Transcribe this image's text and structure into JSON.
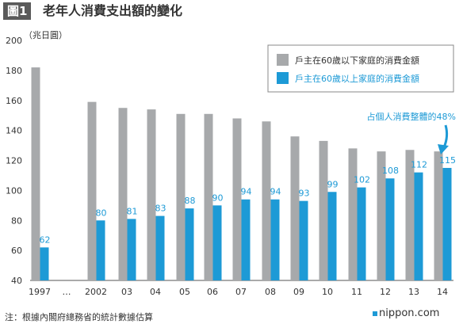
{
  "header": {
    "figure_label": "圖1",
    "title": "老年人消費支出額的變化"
  },
  "unit_label": "（兆日圓）",
  "note": "注：根據內閣府總務省的統計數據估算",
  "brand": "nippon.com",
  "annotation": "占個人消費整體的48%",
  "colors": {
    "gray_series": "#a7a9ab",
    "blue_series": "#1d9ad6",
    "text": "#333333",
    "axis": "#555555"
  },
  "chart_data": {
    "type": "bar",
    "categories": [
      "1997",
      "…",
      "2002",
      "03",
      "04",
      "05",
      "06",
      "07",
      "08",
      "09",
      "10",
      "11",
      "12",
      "13",
      "14"
    ],
    "ylim": [
      40,
      200
    ],
    "yticks": [
      40,
      60,
      80,
      100,
      120,
      140,
      160,
      180,
      200
    ],
    "series": [
      {
        "name": "戶主在60歲以下家庭的消費金額",
        "values": [
          182,
          null,
          159,
          155,
          154,
          151,
          151,
          148,
          146,
          136,
          133,
          128,
          126,
          127,
          126
        ]
      },
      {
        "name": "戶主在60歲以上家庭的消費金額",
        "values": [
          62,
          null,
          80,
          81,
          83,
          88,
          90,
          94,
          94,
          93,
          99,
          102,
          108,
          112,
          115
        ],
        "labels": [
          "62",
          "",
          "80",
          "81",
          "83",
          "88",
          "90",
          "94",
          "94",
          "93",
          "99",
          "102",
          "108",
          "112",
          "115"
        ]
      }
    ],
    "legend_position": "top-right",
    "grid": false
  }
}
